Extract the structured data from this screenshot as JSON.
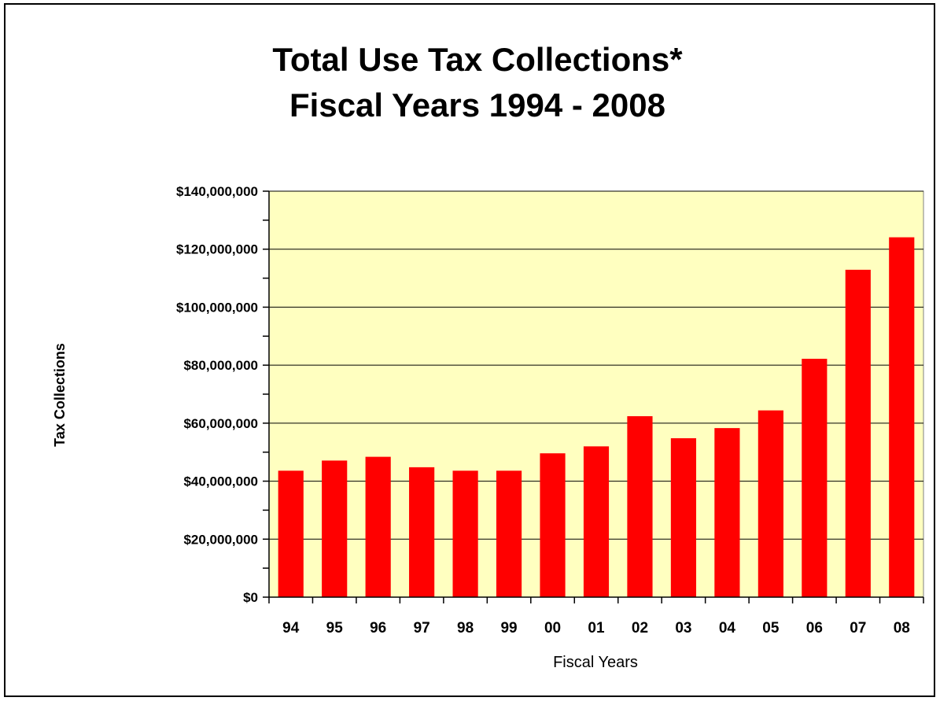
{
  "chart_data": {
    "type": "bar",
    "title": [
      "Total Use Tax Collections*",
      "Fiscal Years 1994 - 2008"
    ],
    "xlabel": "Fiscal Years",
    "ylabel": "Tax Collections",
    "categories": [
      "94",
      "95",
      "96",
      "97",
      "98",
      "99",
      "00",
      "01",
      "02",
      "03",
      "04",
      "05",
      "06",
      "07",
      "08"
    ],
    "values": [
      43600000,
      47100000,
      48400000,
      44800000,
      43600000,
      43600000,
      49600000,
      52000000,
      62400000,
      54800000,
      58300000,
      64400000,
      82200000,
      112900000,
      124100000
    ],
    "ylim": [
      0,
      140000000
    ],
    "y_ticks": [
      0,
      20000000,
      40000000,
      60000000,
      80000000,
      100000000,
      120000000,
      140000000
    ],
    "y_tick_labels": [
      "$0",
      "$20,000,000",
      "$40,000,000",
      "$60,000,000",
      "$80,000,000",
      "$100,000,000",
      "$120,000,000",
      "$140,000,000"
    ],
    "grid": true,
    "legend": "none",
    "colors": {
      "bar": "#ff0000",
      "plot_background": "#ffffc0",
      "gridline": "#000000"
    }
  }
}
